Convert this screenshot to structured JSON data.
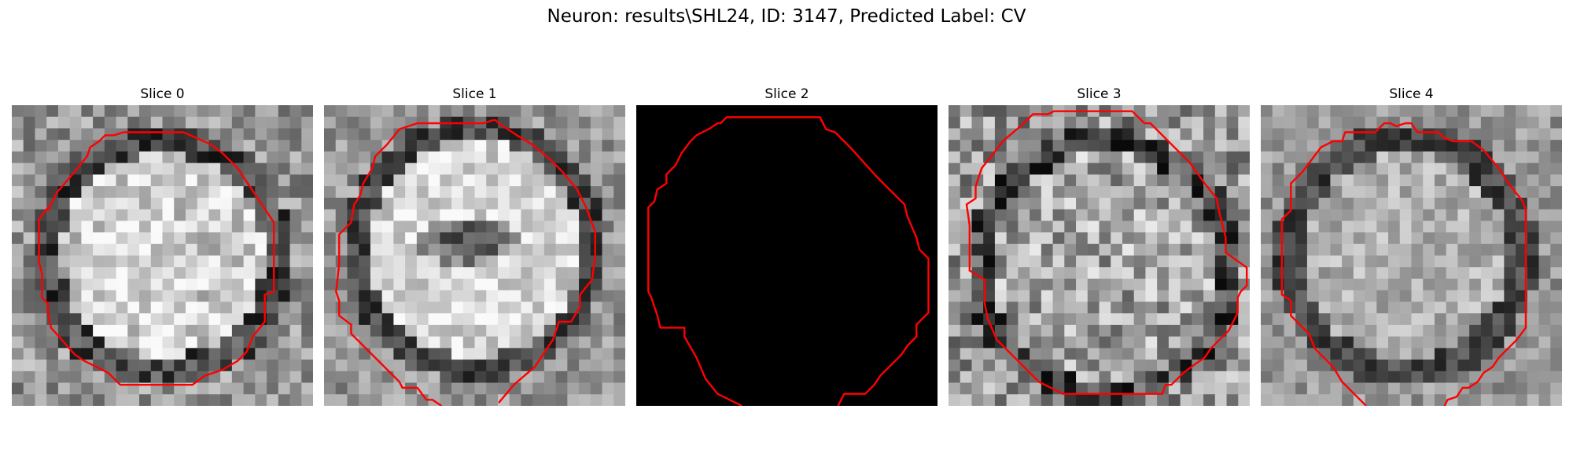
{
  "figure": {
    "title": "Neuron: results\\SHL24, ID: 3147, Predicted Label: CV"
  },
  "slices": [
    {
      "title": "Slice 0",
      "image": "grayscale EM crop, dark circular membrane, bright interior",
      "blank": false
    },
    {
      "title": "Slice 1",
      "image": "grayscale EM crop, dark circular membrane, dark central spot",
      "blank": false
    },
    {
      "title": "Slice 2",
      "image": "solid black (no data)",
      "blank": true
    },
    {
      "title": "Slice 3",
      "image": "grayscale EM crop, textured interior",
      "blank": false
    },
    {
      "title": "Slice 4",
      "image": "grayscale EM crop, dark circular membrane",
      "blank": false
    }
  ],
  "colors": {
    "contour": "#ff0000",
    "blank_background": "#000000"
  }
}
